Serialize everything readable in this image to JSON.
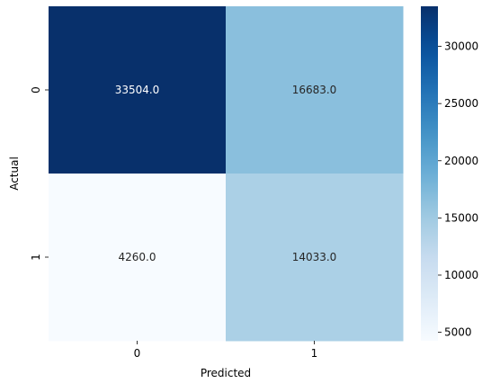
{
  "chart_data": {
    "type": "heatmap",
    "title": "",
    "xlabel": "Predicted",
    "ylabel": "Actual",
    "x_categories": [
      "0",
      "1"
    ],
    "y_categories": [
      "0",
      "1"
    ],
    "matrix": [
      [
        33504.0,
        16683.0
      ],
      [
        4260.0,
        14033.0
      ]
    ],
    "cell_labels": [
      [
        "33504.0",
        "16683.0"
      ],
      [
        "4260.0",
        "14033.0"
      ]
    ],
    "colormap": "Blues",
    "colorbar": {
      "range": [
        4260,
        33504
      ],
      "ticks": [
        5000,
        10000,
        15000,
        20000,
        25000,
        30000
      ],
      "tick_labels": [
        "5000",
        "10000",
        "15000",
        "20000",
        "25000",
        "30000"
      ]
    },
    "grid": false,
    "legend": "colorbar-right"
  }
}
